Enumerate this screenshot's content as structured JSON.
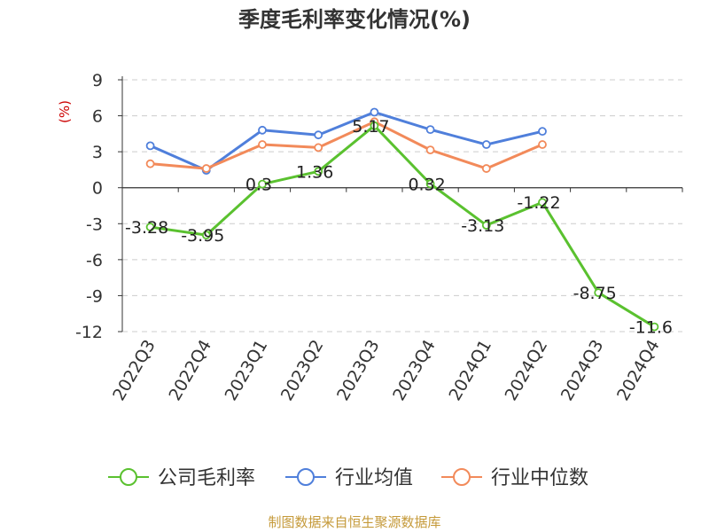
{
  "chart_data": {
    "type": "line",
    "title": "季度毛利率变化情况(%)",
    "ylabel": "(%)",
    "xlabel": "",
    "categories": [
      "2022Q3",
      "2022Q4",
      "2023Q1",
      "2023Q2",
      "2023Q3",
      "2023Q4",
      "2024Q1",
      "2024Q2",
      "2024Q3",
      "2024Q4"
    ],
    "ylim": [
      -12,
      9
    ],
    "yticks": [
      9,
      6,
      3,
      0,
      -3,
      -6,
      -9,
      -12
    ],
    "grid": true,
    "legend_position": "bottom",
    "series": [
      {
        "name": "公司毛利率",
        "color": "#5ac12f",
        "values": [
          -3.28,
          -3.95,
          0.3,
          1.36,
          5.17,
          0.32,
          -3.13,
          -1.22,
          -8.75,
          -11.6
        ],
        "labels": [
          "-3.28",
          "-3.95",
          "0.3",
          "1.36",
          "5.17",
          "0.32",
          "-3.13",
          "-1.22",
          "-8.75",
          "-11.6"
        ]
      },
      {
        "name": "行业均值",
        "color": "#4f7fdb",
        "values": [
          3.5,
          1.45,
          4.8,
          4.4,
          6.3,
          4.85,
          3.6,
          4.7,
          null,
          null
        ]
      },
      {
        "name": "行业中位数",
        "color": "#f28a5a",
        "values": [
          2.0,
          1.6,
          3.6,
          3.35,
          5.5,
          3.15,
          1.6,
          3.6,
          null,
          null
        ]
      }
    ]
  },
  "source": "制图数据来自恒生聚源数据库"
}
